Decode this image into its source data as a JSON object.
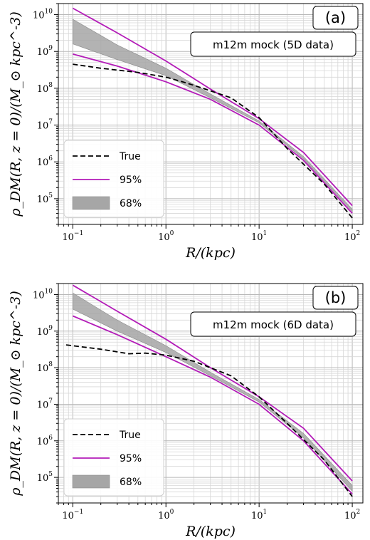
{
  "chart_data": [
    {
      "type": "line",
      "panel_label": "(a)",
      "annotation": "m12m mock (5D data)",
      "xlabel": "R/(kpc)",
      "ylabel": "ρ_DM(R, z = 0)/(M_⊙ kpc^-3)",
      "xscale": "log",
      "yscale": "log",
      "xlim": [
        0.07,
        130
      ],
      "ylim": [
        20000,
        20000000000
      ],
      "grid": true,
      "legend_position": "lower-left",
      "x_ticks": [
        {
          "base": "10",
          "exp": "−1",
          "value": 0.1
        },
        {
          "base": "10",
          "exp": "0",
          "value": 1
        },
        {
          "base": "10",
          "exp": "1",
          "value": 10
        },
        {
          "base": "10",
          "exp": "2",
          "value": 100
        }
      ],
      "y_ticks": [
        {
          "base": "10",
          "exp": "5",
          "value": 100000
        },
        {
          "base": "10",
          "exp": "6",
          "value": 1000000
        },
        {
          "base": "10",
          "exp": "7",
          "value": 10000000
        },
        {
          "base": "10",
          "exp": "8",
          "value": 100000000
        },
        {
          "base": "10",
          "exp": "9",
          "value": 1000000000
        },
        {
          "base": "10",
          "exp": "10",
          "value": 10000000000
        }
      ],
      "legend": [
        {
          "label": "True",
          "style": "dashed",
          "color": "#000000"
        },
        {
          "label": "95%",
          "style": "line",
          "color": "#b31bb8"
        },
        {
          "label": "68%",
          "style": "band",
          "color": "#a6a6a6"
        }
      ],
      "series": [
        {
          "role": "true",
          "x": [
            0.1,
            0.2,
            0.5,
            1,
            1.5,
            2,
            3,
            5,
            10,
            20,
            50,
            100
          ],
          "y": [
            450000000,
            350000000,
            270000000,
            200000000,
            150000000,
            120000000,
            85000000,
            55000000,
            16000000,
            2300000,
            250000,
            30000
          ]
        },
        {
          "role": "upper95",
          "x": [
            0.1,
            0.3,
            1,
            3,
            10,
            30,
            100
          ],
          "y": [
            15000000000,
            3200000000,
            550000000,
            95000000,
            15000000,
            1800000,
            65000
          ]
        },
        {
          "role": "lower95",
          "x": [
            0.1,
            0.3,
            1,
            3,
            10,
            30,
            100
          ],
          "y": [
            850000000,
            400000000,
            150000000,
            50000000,
            10000000,
            1100000,
            40000
          ]
        },
        {
          "role": "upper68",
          "x": [
            0.1,
            0.3,
            1,
            3,
            10,
            30,
            100
          ],
          "y": [
            7500000000,
            1500000000,
            350000000,
            70000000,
            13000000,
            1400000,
            52000
          ]
        },
        {
          "role": "lower68",
          "x": [
            0.1,
            0.3,
            1,
            3,
            10,
            30,
            100
          ],
          "y": [
            1600000000,
            600000000,
            220000000,
            55000000,
            11500000,
            1200000,
            45000
          ]
        }
      ]
    },
    {
      "type": "line",
      "panel_label": "(b)",
      "annotation": "m12m mock (6D data)",
      "xlabel": "R/(kpc)",
      "ylabel": "ρ_DM(R, z = 0)/(M_⊙ kpc^-3)",
      "xscale": "log",
      "yscale": "log",
      "xlim": [
        0.07,
        130
      ],
      "ylim": [
        20000,
        20000000000
      ],
      "grid": true,
      "legend_position": "lower-left",
      "x_ticks": [
        {
          "base": "10",
          "exp": "−1",
          "value": 0.1
        },
        {
          "base": "10",
          "exp": "0",
          "value": 1
        },
        {
          "base": "10",
          "exp": "1",
          "value": 10
        },
        {
          "base": "10",
          "exp": "2",
          "value": 100
        }
      ],
      "y_ticks": [
        {
          "base": "10",
          "exp": "5",
          "value": 100000
        },
        {
          "base": "10",
          "exp": "6",
          "value": 1000000
        },
        {
          "base": "10",
          "exp": "7",
          "value": 10000000
        },
        {
          "base": "10",
          "exp": "8",
          "value": 100000000
        },
        {
          "base": "10",
          "exp": "9",
          "value": 1000000000
        },
        {
          "base": "10",
          "exp": "10",
          "value": 10000000000
        }
      ],
      "legend": [
        {
          "label": "True",
          "style": "dashed",
          "color": "#000000"
        },
        {
          "label": "95%",
          "style": "line",
          "color": "#b31bb8"
        },
        {
          "label": "68%",
          "style": "band",
          "color": "#a6a6a6"
        }
      ],
      "series": [
        {
          "role": "true",
          "x": [
            0.085,
            0.2,
            0.4,
            0.6,
            1,
            2,
            5,
            10,
            20,
            50,
            100
          ],
          "y": [
            420000000,
            320000000,
            240000000,
            250000000,
            220000000,
            150000000,
            60000000,
            16000000,
            3000000,
            300000,
            30000
          ]
        },
        {
          "role": "upper95",
          "x": [
            0.1,
            0.3,
            1,
            3,
            10,
            30,
            100
          ],
          "y": [
            18000000000,
            3500000000,
            600000000,
            100000000,
            16000000,
            2200000,
            80000
          ]
        },
        {
          "role": "lower95",
          "x": [
            0.1,
            0.3,
            1,
            3,
            10,
            30,
            100
          ],
          "y": [
            2600000000,
            800000000,
            200000000,
            55000000,
            10000000,
            1000000,
            35000
          ]
        },
        {
          "role": "upper68",
          "x": [
            0.1,
            0.3,
            1,
            3,
            10,
            30,
            100
          ],
          "y": [
            11000000000,
            2000000000,
            400000000,
            75000000,
            13500000,
            1600000,
            60000
          ]
        },
        {
          "role": "lower68",
          "x": [
            0.1,
            0.3,
            1,
            3,
            10,
            30,
            100
          ],
          "y": [
            4000000000,
            1000000000,
            260000000,
            60000000,
            11500000,
            1200000,
            42000
          ]
        }
      ]
    }
  ]
}
